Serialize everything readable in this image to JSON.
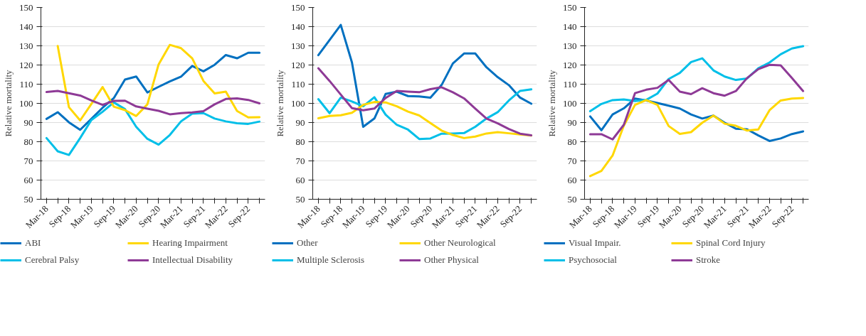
{
  "chart_data": [
    {
      "type": "line",
      "ylabel": "Relative mortality",
      "ylim": [
        50,
        150
      ],
      "yticks": [
        50,
        60,
        70,
        80,
        90,
        100,
        110,
        120,
        130,
        140,
        150
      ],
      "grid": "y",
      "legend": "bottom",
      "categories": [
        "Mar-18",
        null,
        "Sep-18",
        null,
        "Mar-19",
        null,
        "Sep-19",
        null,
        "Mar-20",
        null,
        "Sep-20",
        null,
        "Mar-21",
        null,
        "Sep-21",
        null,
        "Mar-22",
        null,
        "Sep-22",
        null
      ],
      "series": [
        {
          "name": "ABI",
          "color": "#0070c0",
          "values": [
            91.9,
            95.4,
            90.1,
            86.2,
            91.9,
            97.7,
            102.7,
            112.4,
            114,
            105.7,
            108.6,
            111.4,
            113.9,
            119.5,
            116.7,
            120.1,
            125.2,
            123.5,
            126.4,
            126.4
          ]
        },
        {
          "name": "Cerebral Palsy",
          "color": "#00bfe8",
          "values": [
            81.9,
            75,
            73.1,
            81.9,
            91.3,
            95.6,
            100.5,
            97,
            87.8,
            81.5,
            78.5,
            83.5,
            90.6,
            94.6,
            94.9,
            92.1,
            90.6,
            89.6,
            89.3,
            90.5
          ]
        },
        {
          "name": "Hearing Impairment",
          "color": "#ffd700",
          "values": [
            null,
            129.9,
            98,
            91.1,
            99.7,
            108.5,
            98.3,
            96.5,
            93.4,
            99.5,
            120.3,
            130.5,
            128.8,
            123.5,
            111.7,
            105.2,
            106.1,
            96,
            92.7,
            92.8
          ]
        },
        {
          "name": "Intellectual Disability",
          "color": "#8e3a96",
          "values": [
            105.9,
            106.5,
            105.3,
            104.1,
            101.5,
            99.2,
            101.3,
            101.4,
            98.4,
            97.2,
            96.1,
            94.3,
            94.9,
            95.3,
            95.9,
            99.5,
            102.3,
            102.6,
            101.8,
            100
          ]
        }
      ]
    },
    {
      "type": "line",
      "ylabel": "Relative mortality",
      "ylim": [
        50,
        150
      ],
      "yticks": [
        50,
        60,
        70,
        80,
        90,
        100,
        110,
        120,
        130,
        140,
        150
      ],
      "grid": "y",
      "legend": "bottom",
      "categories": [
        "Mar-18",
        null,
        "Sep-18",
        null,
        "Mar-19",
        null,
        "Sep-19",
        null,
        "Mar-20",
        null,
        "Sep-20",
        null,
        "Mar-21",
        null,
        "Sep-21",
        null,
        "Mar-22",
        null,
        "Sep-22",
        null
      ],
      "series": [
        {
          "name": "Other",
          "color": "#0070c0",
          "values": [
            125.1,
            133,
            140.9,
            121.3,
            87.8,
            92.1,
            104.9,
            106.1,
            103.8,
            103.6,
            103,
            109.6,
            120.8,
            126,
            126,
            118.8,
            113.7,
            109.5,
            103,
            99.8
          ]
        },
        {
          "name": "Multiple Sclerosis",
          "color": "#00bfe8",
          "values": [
            102.2,
            94.9,
            103,
            101,
            98.5,
            103.2,
            94.1,
            88.8,
            86.3,
            81.4,
            81.7,
            84.2,
            84.3,
            84.5,
            87.8,
            92.1,
            95.4,
            101.5,
            106.5,
            107.3
          ]
        },
        {
          "name": "Other Neurological",
          "color": "#ffd700",
          "values": [
            92.2,
            93.4,
            93.8,
            95.1,
            99.2,
            100.7,
            100.5,
            98.5,
            95.7,
            93.7,
            89.7,
            85.8,
            83.5,
            81.9,
            82.7,
            84.3,
            85,
            84.4,
            83.8,
            83.2
          ]
        },
        {
          "name": "Other Physical",
          "color": "#8e3a96",
          "values": [
            118.3,
            111.7,
            104.6,
            97.5,
            96.4,
            97.3,
            102.8,
            106.5,
            106.1,
            105.8,
            107.4,
            108.4,
            105.8,
            102.6,
            97.3,
            92.1,
            89.6,
            86.6,
            84.2,
            83.3
          ]
        }
      ]
    },
    {
      "type": "line",
      "ylabel": "Relative mortality",
      "ylim": [
        50,
        150
      ],
      "yticks": [
        50,
        60,
        70,
        80,
        90,
        100,
        110,
        120,
        130,
        140,
        150
      ],
      "grid": "y",
      "legend": "bottom",
      "categories": [
        "Mar-18",
        null,
        "Sep-18",
        null,
        "Mar-19",
        null,
        "Sep-19",
        null,
        "Mar-20",
        null,
        "Sep-20",
        null,
        "Mar-21",
        null,
        "Sep-21",
        null,
        "Mar-22",
        null,
        "Sep-22",
        null
      ],
      "series": [
        {
          "name": "Visual Impair.",
          "color": "#0070c0",
          "values": [
            93.2,
            86,
            94.2,
            97.4,
            102.5,
            101.5,
            100.2,
            98.8,
            97.3,
            94.2,
            92.1,
            93.6,
            89.9,
            86.8,
            86.5,
            83.3,
            80.4,
            81.7,
            84,
            85.4
          ]
        },
        {
          "name": "Psychosocial",
          "color": "#00bfe8",
          "values": [
            95.9,
            99.7,
            101.7,
            102,
            101.2,
            101.8,
            105.1,
            112.7,
            115.9,
            121.5,
            123.5,
            117.2,
            114,
            112.2,
            113,
            118.3,
            121.3,
            125.6,
            128.6,
            129.8
          ]
        },
        {
          "name": "Spinal Cord Injury",
          "color": "#ffd700",
          "values": [
            62.1,
            64.8,
            72.8,
            88.3,
            99.2,
            101.7,
            99.2,
            88.2,
            84.1,
            85,
            89.9,
            93.6,
            89.4,
            88.3,
            85.8,
            86.4,
            96.4,
            101.5,
            102.5,
            102.8
          ]
        },
        {
          "name": "Stroke",
          "color": "#8e3a96",
          "values": [
            83.9,
            83.9,
            81.2,
            88.8,
            105.3,
            107.1,
            108.1,
            112.2,
            106.1,
            104.8,
            107.9,
            105.3,
            104,
            106.4,
            113.2,
            117.8,
            120.1,
            119.8,
            113.2,
            106.4
          ]
        }
      ]
    }
  ]
}
